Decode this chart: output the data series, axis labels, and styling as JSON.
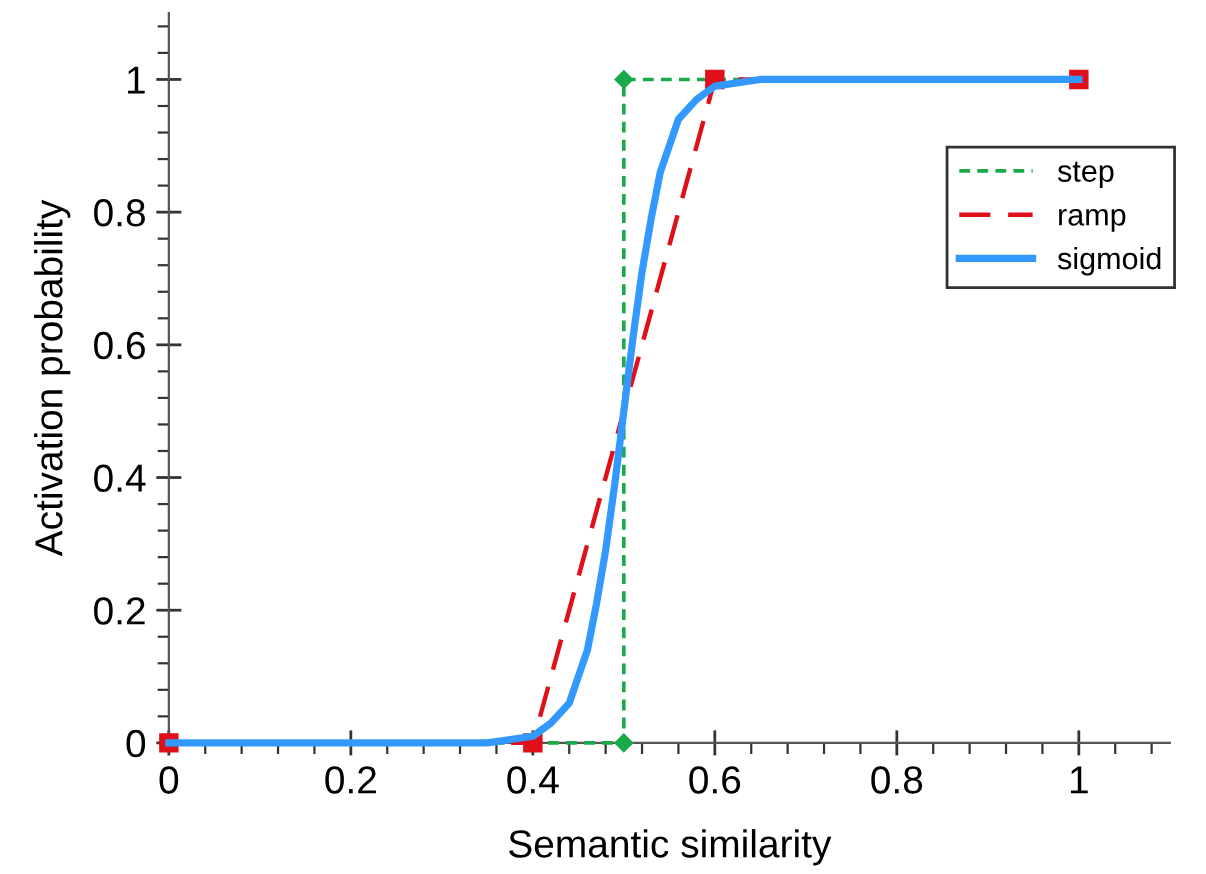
{
  "chart_data": {
    "type": "line",
    "xlabel": "Semantic similarity",
    "ylabel": "Activation probability",
    "xlim": [
      0,
      1.1
    ],
    "ylim": [
      0,
      1.1
    ],
    "xticks": [
      0,
      {
        "value": 0.04,
        "label": null
      },
      {
        "value": 0.08,
        "label": null
      },
      {
        "value": 0.12,
        "label": null
      },
      {
        "value": 0.16,
        "label": null
      },
      0.2,
      {
        "value": 0.24,
        "label": null
      },
      {
        "value": 0.28,
        "label": null
      },
      {
        "value": 0.32,
        "label": null
      },
      {
        "value": 0.36,
        "label": null
      },
      0.4,
      {
        "value": 0.44,
        "label": null
      },
      {
        "value": 0.48,
        "label": null
      },
      {
        "value": 0.52,
        "label": null
      },
      {
        "value": 0.56,
        "label": null
      },
      0.6,
      {
        "value": 0.64,
        "label": null
      },
      {
        "value": 0.68,
        "label": null
      },
      {
        "value": 0.72,
        "label": null
      },
      {
        "value": 0.76,
        "label": null
      },
      0.8,
      {
        "value": 0.84,
        "label": null
      },
      {
        "value": 0.88,
        "label": null
      },
      {
        "value": 0.92,
        "label": null
      },
      {
        "value": 0.96,
        "label": null
      },
      1,
      {
        "value": 1.04,
        "label": null
      },
      {
        "value": 1.08,
        "label": null
      }
    ],
    "yticks": [
      0,
      {
        "value": 0.04,
        "label": null
      },
      {
        "value": 0.08,
        "label": null
      },
      {
        "value": 0.12,
        "label": null
      },
      {
        "value": 0.16,
        "label": null
      },
      0.2,
      {
        "value": 0.24,
        "label": null
      },
      {
        "value": 0.28,
        "label": null
      },
      {
        "value": 0.32,
        "label": null
      },
      {
        "value": 0.36,
        "label": null
      },
      0.4,
      {
        "value": 0.44,
        "label": null
      },
      {
        "value": 0.48,
        "label": null
      },
      {
        "value": 0.52,
        "label": null
      },
      {
        "value": 0.56,
        "label": null
      },
      0.6,
      {
        "value": 0.64,
        "label": null
      },
      {
        "value": 0.68,
        "label": null
      },
      {
        "value": 0.72,
        "label": null
      },
      {
        "value": 0.76,
        "label": null
      },
      0.8,
      {
        "value": 0.84,
        "label": null
      },
      {
        "value": 0.88,
        "label": null
      },
      {
        "value": 0.92,
        "label": null
      },
      {
        "value": 0.96,
        "label": null
      },
      1,
      {
        "value": 1.04,
        "label": null
      },
      {
        "value": 1.08,
        "label": null
      }
    ],
    "grid": false,
    "legend": "right",
    "series": [
      {
        "name": "step",
        "color": "#1aaa4a",
        "line_style": "dotted",
        "marker": "diamond",
        "x": [
          0,
          0.5,
          0.5,
          1
        ],
        "values": [
          0,
          0,
          1,
          1
        ]
      },
      {
        "name": "ramp",
        "color": "#e0101a",
        "line_style": "dashed",
        "marker": "square",
        "x": [
          0,
          0.4,
          0.6,
          1
        ],
        "values": [
          0,
          0,
          1,
          1
        ]
      },
      {
        "name": "sigmoid",
        "color": "#3399ff",
        "line_style": "solid",
        "marker": "none",
        "x": [
          0,
          0.35,
          0.4,
          0.42,
          0.44,
          0.45,
          0.46,
          0.47,
          0.48,
          0.49,
          0.5,
          0.51,
          0.52,
          0.53,
          0.54,
          0.55,
          0.56,
          0.58,
          0.6,
          0.65,
          1
        ],
        "values": [
          0,
          0,
          0.01,
          0.03,
          0.06,
          0.1,
          0.14,
          0.21,
          0.29,
          0.39,
          0.5,
          0.61,
          0.71,
          0.79,
          0.86,
          0.9,
          0.94,
          0.97,
          0.99,
          1,
          1
        ]
      }
    ]
  }
}
